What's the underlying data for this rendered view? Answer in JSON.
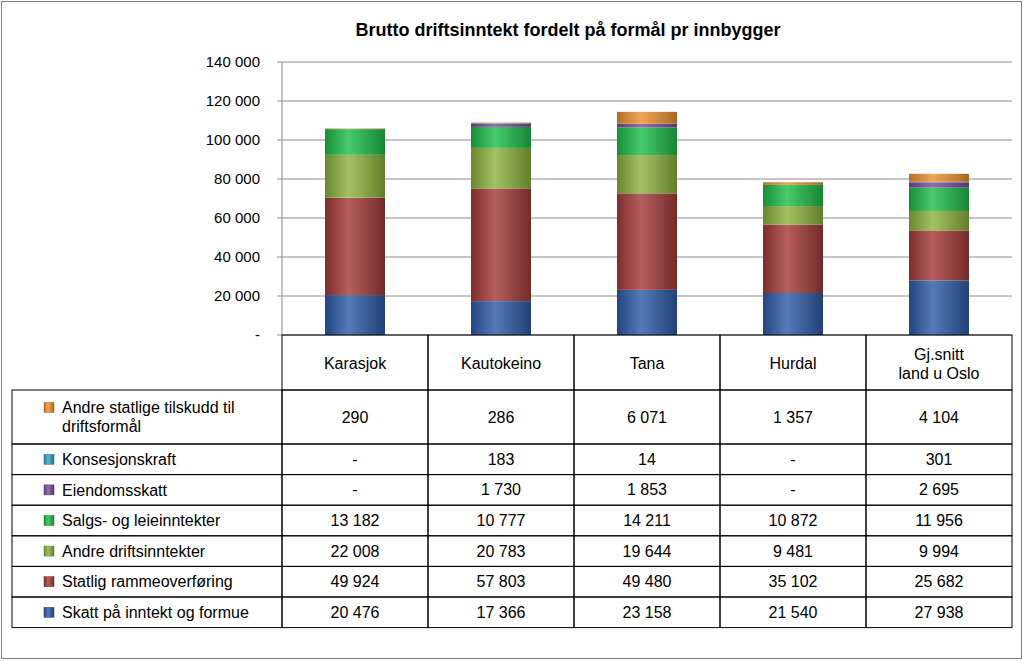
{
  "chart_data": {
    "type": "bar",
    "stacked": true,
    "grid": true,
    "title": "Brutto driftsinntekt fordelt på formål pr innbygger",
    "categories": [
      "Karasjok",
      "Kautokeino",
      "Tana",
      "Hurdal",
      "Gj.snitt land u Oslo"
    ],
    "ylim": [
      0,
      140000
    ],
    "yticks": [
      {
        "value": 0,
        "label": "-"
      },
      {
        "value": 20000,
        "label": "20 000"
      },
      {
        "value": 40000,
        "label": "40 000"
      },
      {
        "value": 60000,
        "label": "60 000"
      },
      {
        "value": 80000,
        "label": "80 000"
      },
      {
        "value": 100000,
        "label": "100 000"
      },
      {
        "value": 120000,
        "label": "120 000"
      },
      {
        "value": 140000,
        "label": "140 000"
      }
    ],
    "series": [
      {
        "name": "Skatt på inntekt og formue",
        "color": "#2f5da9",
        "values": [
          20476,
          17366,
          23158,
          21540,
          27938
        ],
        "value_labels": [
          "20 476",
          "17 366",
          "23 158",
          "21 540",
          "27 938"
        ]
      },
      {
        "name": "Statlig rammeoverføring",
        "color": "#a63c3a",
        "values": [
          49924,
          57803,
          49480,
          35102,
          25682
        ],
        "value_labels": [
          "49 924",
          "57 803",
          "49 480",
          "35 102",
          "25 682"
        ]
      },
      {
        "name": "Andre driftsinntekter",
        "color": "#8db43e",
        "values": [
          22008,
          20783,
          19644,
          9481,
          9994
        ],
        "value_labels": [
          "22 008",
          "20 783",
          "19 644",
          "9 481",
          "9 994"
        ]
      },
      {
        "name": "Salgs- og leieinntekter",
        "color": "#1fbf4a",
        "values": [
          13182,
          10777,
          14211,
          10872,
          11956
        ],
        "value_labels": [
          "13 182",
          "10 777",
          "14 211",
          "10 872",
          "11 956"
        ]
      },
      {
        "name": "Eiendomsskatt",
        "color": "#7b4fa0",
        "values": [
          0,
          1730,
          1853,
          0,
          2695
        ],
        "value_labels": [
          "-",
          "1 730",
          "1 853",
          "-",
          "2 695"
        ]
      },
      {
        "name": "Konsesjonskraft",
        "color": "#33a7c9",
        "values": [
          0,
          183,
          14,
          0,
          301
        ],
        "value_labels": [
          "-",
          "183",
          "14",
          "-",
          "301"
        ]
      },
      {
        "name": "Andre statlige tilskudd til driftsformål",
        "color": "#ef9330",
        "values": [
          290,
          286,
          6071,
          1357,
          4104
        ],
        "value_labels": [
          "290",
          "286",
          "6 071",
          "1 357",
          "4 104"
        ]
      }
    ]
  }
}
